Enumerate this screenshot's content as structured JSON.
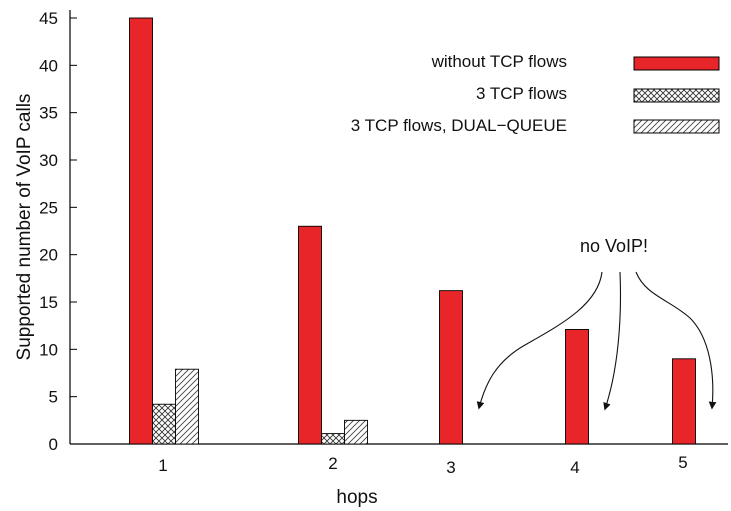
{
  "chart_data": {
    "type": "bar",
    "title": "",
    "xlabel": "hops",
    "ylabel": "Supported number of VoIP calls",
    "ylim": [
      0,
      45
    ],
    "yticks": [
      "0",
      "5",
      "10",
      "15",
      "20",
      "25",
      "30",
      "35",
      "40",
      "45"
    ],
    "categories": [
      "1",
      "2",
      "3",
      "4",
      "5"
    ],
    "grid": false,
    "legend_position": "top-right",
    "series": [
      {
        "name": "without TCP flows",
        "values": [
          45,
          23,
          16.2,
          12.1,
          9
        ],
        "fill": "solid",
        "color": "#e8262a"
      },
      {
        "name": "3 TCP flows",
        "values": [
          4.2,
          1.1,
          null,
          null,
          null
        ],
        "fill": "crosshatch",
        "color": "#555555"
      },
      {
        "name": "3 TCP flows, DUAL−QUEUE",
        "values": [
          7.9,
          2.5,
          null,
          null,
          null
        ],
        "fill": "diagonal",
        "color": "#555555"
      }
    ],
    "annotations": [
      {
        "text": "no VoIP!",
        "targets": [
          "3",
          "4",
          "5"
        ]
      }
    ]
  }
}
